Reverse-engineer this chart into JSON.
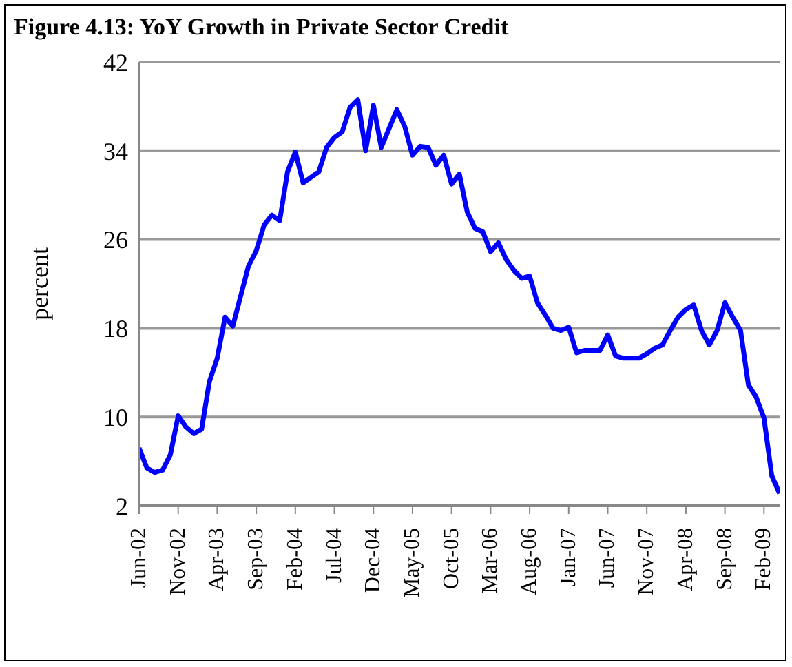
{
  "chart_data": {
    "type": "line",
    "title": "Figure 4.13: YoY Growth in Private Sector Credit",
    "ylabel": "percent",
    "categories": [
      "Jun-02",
      null,
      null,
      null,
      null,
      "Nov-02",
      null,
      null,
      null,
      null,
      "Apr-03",
      null,
      null,
      null,
      null,
      "Sep-03",
      null,
      null,
      null,
      null,
      "Feb-04",
      null,
      null,
      null,
      null,
      "Jul-04",
      null,
      null,
      null,
      null,
      "Dec-04",
      null,
      null,
      null,
      null,
      "May-05",
      null,
      null,
      null,
      null,
      "Oct-05",
      null,
      null,
      null,
      null,
      "Mar-06",
      null,
      null,
      null,
      null,
      "Aug-06",
      null,
      null,
      null,
      null,
      "Jan-07",
      null,
      null,
      null,
      null,
      "Jun-07",
      null,
      null,
      null,
      null,
      "Nov-07",
      null,
      null,
      null,
      null,
      "Apr-08",
      null,
      null,
      null,
      null,
      "Sep-08",
      null,
      null,
      null,
      null,
      "Feb-09",
      null,
      null
    ],
    "series": [
      {
        "color": "#0000ff",
        "values": [
          7.2,
          5.4,
          5.0,
          5.2,
          6.6,
          10.1,
          9.1,
          8.5,
          8.9,
          13.2,
          15.3,
          19.0,
          18.2,
          20.9,
          23.6,
          25.0,
          27.3,
          28.2,
          27.7,
          32.1,
          33.9,
          31.1,
          31.6,
          32.1,
          34.3,
          35.2,
          35.7,
          37.9,
          38.6,
          34.0,
          38.1,
          34.3,
          36.0,
          37.7,
          36.2,
          33.6,
          34.4,
          34.3,
          32.7,
          33.6,
          31.0,
          31.9,
          28.5,
          27.0,
          26.7,
          24.9,
          25.7,
          24.2,
          23.2,
          22.5,
          22.7,
          20.3,
          19.2,
          18.0,
          17.8,
          18.1,
          15.8,
          16.0,
          16.0,
          16.0,
          17.4,
          15.5,
          15.3,
          15.3,
          15.3,
          15.7,
          16.2,
          16.5,
          17.8,
          19.0,
          19.7,
          20.1,
          17.8,
          16.5,
          17.8,
          20.3,
          19.0,
          17.8,
          12.9,
          11.8,
          9.9,
          4.7,
          3.1
        ]
      }
    ],
    "ylim": [
      2,
      42
    ],
    "yticks": [
      2,
      10,
      18,
      26,
      34,
      42
    ],
    "grid": "y",
    "legend": false,
    "marker": "none",
    "line_style": "solid"
  }
}
